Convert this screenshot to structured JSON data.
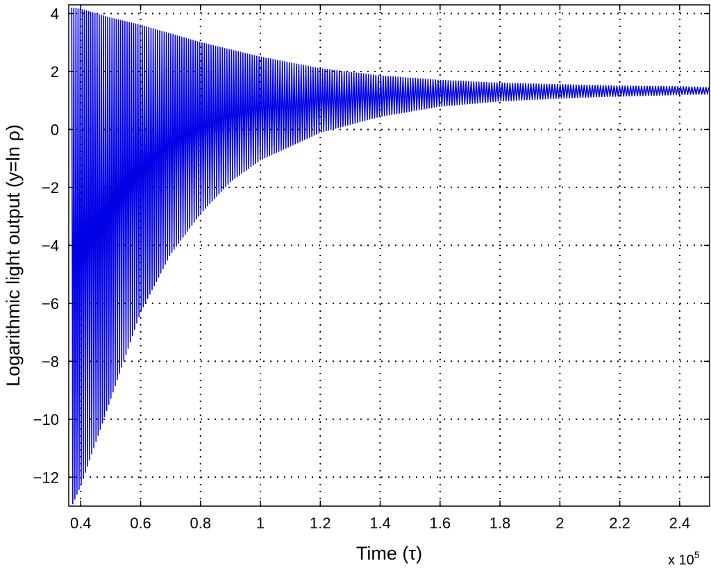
{
  "chart_data": {
    "type": "line",
    "title": "",
    "xlabel": "Time (τ)",
    "ylabel": "Logarithmic light output (y=ln ρ)",
    "x_multiplier_label": "x 10",
    "x_multiplier_exponent": "5",
    "xlim": [
      0.36,
      2.5
    ],
    "ylim": [
      -13,
      4.3
    ],
    "x_ticks": [
      0.4,
      0.6,
      0.8,
      1,
      1.2,
      1.4,
      1.6,
      1.8,
      2,
      2.2,
      2.4
    ],
    "x_tick_labels": [
      "0.4",
      "0.6",
      "0.8",
      "1",
      "1.2",
      "1.4",
      "1.6",
      "1.8",
      "2",
      "2.2",
      "2.4"
    ],
    "y_ticks": [
      4,
      2,
      0,
      -2,
      -4,
      -6,
      -8,
      -10,
      -12
    ],
    "y_tick_labels": [
      "4",
      "2",
      "0",
      "−2",
      "−4",
      "−6",
      "−8",
      "−10",
      "−12"
    ],
    "grid": true,
    "legend": "none",
    "color": "#0000e6",
    "series": [
      {
        "style": "damped oscillation converging toward about 1.3",
        "envelope_x": [
          0.37,
          0.4,
          0.45,
          0.5,
          0.6,
          0.7,
          0.8,
          0.9,
          1.0,
          1.2,
          1.4,
          1.6,
          1.8,
          2.0,
          2.2,
          2.4,
          2.5
        ],
        "envelope_max": [
          4.2,
          4.15,
          4.0,
          3.85,
          3.6,
          3.3,
          3.0,
          2.75,
          2.5,
          2.1,
          1.85,
          1.7,
          1.6,
          1.55,
          1.5,
          1.48,
          1.45
        ],
        "envelope_min": [
          -13,
          -12.3,
          -10.8,
          -9.3,
          -6.3,
          -4.3,
          -2.9,
          -1.8,
          -1.05,
          -0.1,
          0.45,
          0.8,
          0.98,
          1.08,
          1.15,
          1.2,
          1.22
        ],
        "x_start": 0.37,
        "x_end": 2.5,
        "period_start": 0.007,
        "period_end": 0.0095
      }
    ]
  }
}
